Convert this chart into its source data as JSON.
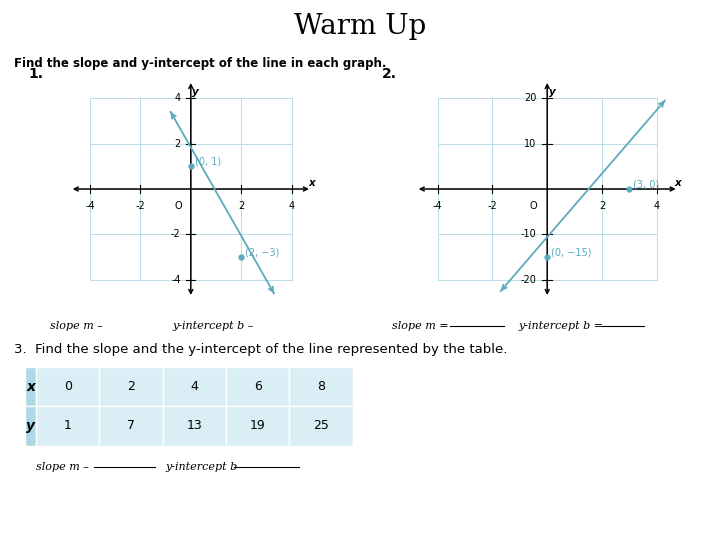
{
  "title": "Warm Up",
  "subtitle": "Find the slope and y-intercept of the line in each graph.",
  "problem3_text": "3.  Find the slope and the y-intercept of the line represented by the table.",
  "graph1": {
    "label": "1.",
    "xlim": [
      -5,
      5
    ],
    "ylim": [
      -5,
      5
    ],
    "xticks": [
      -4,
      -2,
      0,
      2,
      4
    ],
    "yticks": [
      -4,
      -2,
      0,
      2,
      4
    ],
    "line_x": [
      -0.8,
      3.3
    ],
    "line_y": [
      3.4,
      -4.6
    ],
    "points": [
      [
        0,
        1
      ],
      [
        2,
        -3
      ]
    ],
    "point_labels": [
      "(0, 1)",
      "(2, −3)"
    ],
    "grid_color": "#b8dde8",
    "line_color": "#5baabf",
    "point_color": "#5baabf"
  },
  "graph2": {
    "label": "2.",
    "xlim": [
      -5,
      5
    ],
    "ylim": [
      -25,
      25
    ],
    "xticks": [
      -4,
      -2,
      0,
      2,
      4
    ],
    "yticks": [
      -20,
      -10,
      0,
      10,
      20
    ],
    "line_x": [
      -1.7,
      4.3
    ],
    "line_y": [
      -22.5,
      19.5
    ],
    "points": [
      [
        3,
        0
      ],
      [
        0,
        -15
      ]
    ],
    "point_labels": [
      "(3, 0)",
      "(0, −15)"
    ],
    "grid_color": "#b8dde8",
    "line_color": "#5baabf",
    "point_color": "#5baabf"
  },
  "slope1_text": "slope m –",
  "yint1_text": "y-intercept b –",
  "slope2_text": "slope m =",
  "yint2_text": "y-intercept b =",
  "table": {
    "x_vals": [
      0,
      2,
      4,
      6,
      8
    ],
    "y_vals": [
      1,
      7,
      13,
      19,
      25
    ],
    "header_bg": "#add8e6",
    "cell_bg": "#daeef5"
  },
  "slope3_text": "slope m –",
  "yint3_text": "y-intercept b –",
  "bg_color": "#ffffff",
  "text_color": "#000000"
}
